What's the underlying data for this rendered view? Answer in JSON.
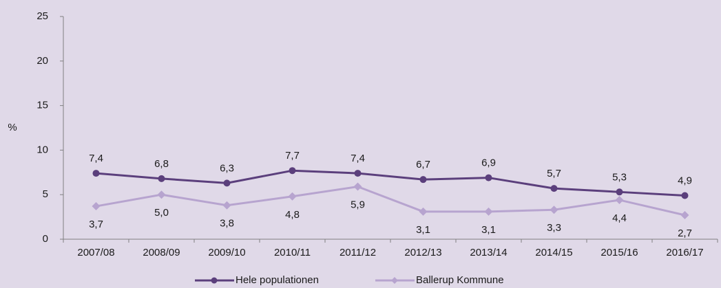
{
  "chart_data": {
    "type": "line",
    "y_label": "%",
    "categories": [
      "2007/08",
      "2008/09",
      "2009/10",
      "2010/11",
      "2011/12",
      "2012/13",
      "2013/14",
      "2014/15",
      "2015/16",
      "2016/17"
    ],
    "series": [
      {
        "name": "Hele populationen",
        "color": "#5b3f7c",
        "marker": "circle",
        "values": [
          7.4,
          6.8,
          6.3,
          7.7,
          7.4,
          6.7,
          6.9,
          5.7,
          5.3,
          4.9
        ],
        "value_labels": [
          "7,4",
          "6,8",
          "6,3",
          "7,7",
          "7,4",
          "6,7",
          "6,9",
          "5,7",
          "5,3",
          "4,9"
        ]
      },
      {
        "name": "Ballerup Kommune",
        "color": "#b7a4cf",
        "marker": "diamond",
        "values": [
          3.7,
          5.0,
          3.8,
          4.8,
          5.9,
          3.1,
          3.1,
          3.3,
          4.4,
          2.7
        ],
        "value_labels": [
          "3,7",
          "5,0",
          "3,8",
          "4,8",
          "5,9",
          "3,1",
          "3,1",
          "3,3",
          "4,4",
          "2,7"
        ]
      }
    ],
    "ylim": [
      0,
      25
    ],
    "yticks": [
      0,
      5,
      10,
      15,
      20,
      25
    ],
    "grid": false,
    "legend": "bottom"
  }
}
